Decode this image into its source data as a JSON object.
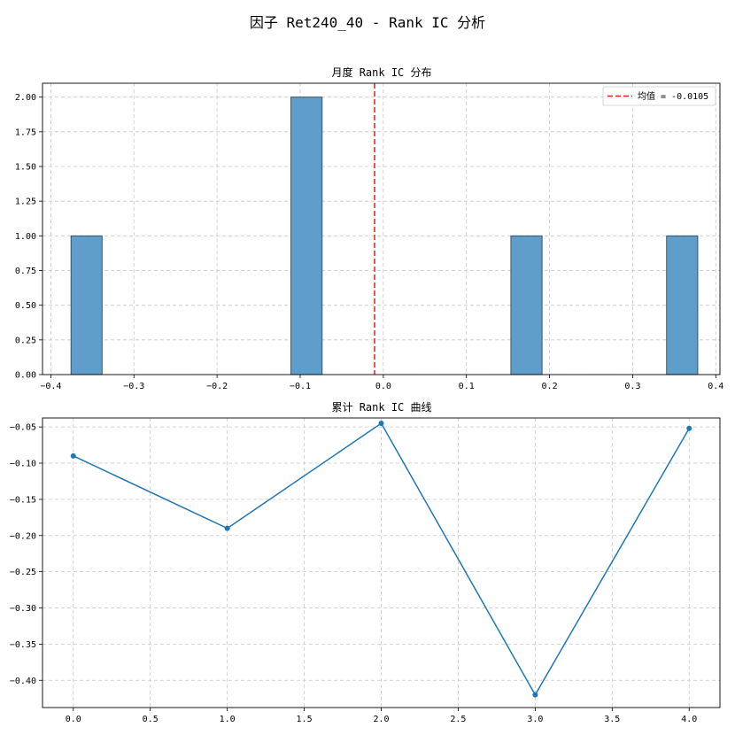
{
  "figure_title": "因子 Ret240_40 - Rank IC 分析",
  "chart_data": [
    {
      "type": "bar",
      "title": "月度 Rank IC 分布",
      "xlabel": "",
      "ylabel": "",
      "xlim": [
        -0.41,
        0.405
      ],
      "ylim": [
        0,
        2.1
      ],
      "xticks": [
        -0.4,
        -0.3,
        -0.2,
        -0.1,
        0.0,
        0.1,
        0.2,
        0.3,
        0.4
      ],
      "xtick_labels": [
        "−0.4",
        "−0.3",
        "−0.2",
        "−0.1",
        "0.0",
        "0.1",
        "0.2",
        "0.3",
        "0.4"
      ],
      "yticks": [
        0,
        0.25,
        0.5,
        0.75,
        1.0,
        1.25,
        1.5,
        1.75,
        2.0
      ],
      "ytick_labels": [
        "0.00",
        "0.25",
        "0.50",
        "0.75",
        "1.00",
        "1.25",
        "1.50",
        "1.75",
        "2.00"
      ],
      "bins": [
        {
          "start": -0.3757,
          "end": -0.3383,
          "count": 1
        },
        {
          "start": -0.1111,
          "end": -0.0736,
          "count": 2
        },
        {
          "start": 0.1535,
          "end": 0.191,
          "count": 1
        },
        {
          "start": 0.3408,
          "end": 0.3783,
          "count": 1
        }
      ],
      "mean": -0.0105,
      "legend": {
        "label": "均值 = -0.0105",
        "position": "top-right"
      },
      "grid": true,
      "colors": {
        "bar": "#5f9ecb",
        "bar_edge": "#2b4a5c",
        "mean_line": "#e0201b"
      }
    },
    {
      "type": "line",
      "title": "累计 Rank IC 曲线",
      "xlabel": "",
      "ylabel": "",
      "xlim": [
        -0.2,
        4.2
      ],
      "ylim": [
        -0.4376,
        -0.0376
      ],
      "xticks": [
        0.0,
        0.5,
        1.0,
        1.5,
        2.0,
        2.5,
        3.0,
        3.5,
        4.0
      ],
      "xtick_labels": [
        "0.0",
        "0.5",
        "1.0",
        "1.5",
        "2.0",
        "2.5",
        "3.0",
        "3.5",
        "4.0"
      ],
      "yticks": [
        -0.05,
        -0.1,
        -0.15,
        -0.2,
        -0.25,
        -0.3,
        -0.35,
        -0.4
      ],
      "ytick_labels": [
        "−0.05",
        "−0.10",
        "−0.15",
        "−0.20",
        "−0.25",
        "−0.30",
        "−0.35",
        "−0.40"
      ],
      "x": [
        0,
        1,
        2,
        3,
        4
      ],
      "y": [
        -0.09,
        -0.19,
        -0.045,
        -0.42,
        -0.052
      ],
      "markers": true,
      "grid": true,
      "colors": {
        "line": "#1f77b4"
      }
    }
  ]
}
